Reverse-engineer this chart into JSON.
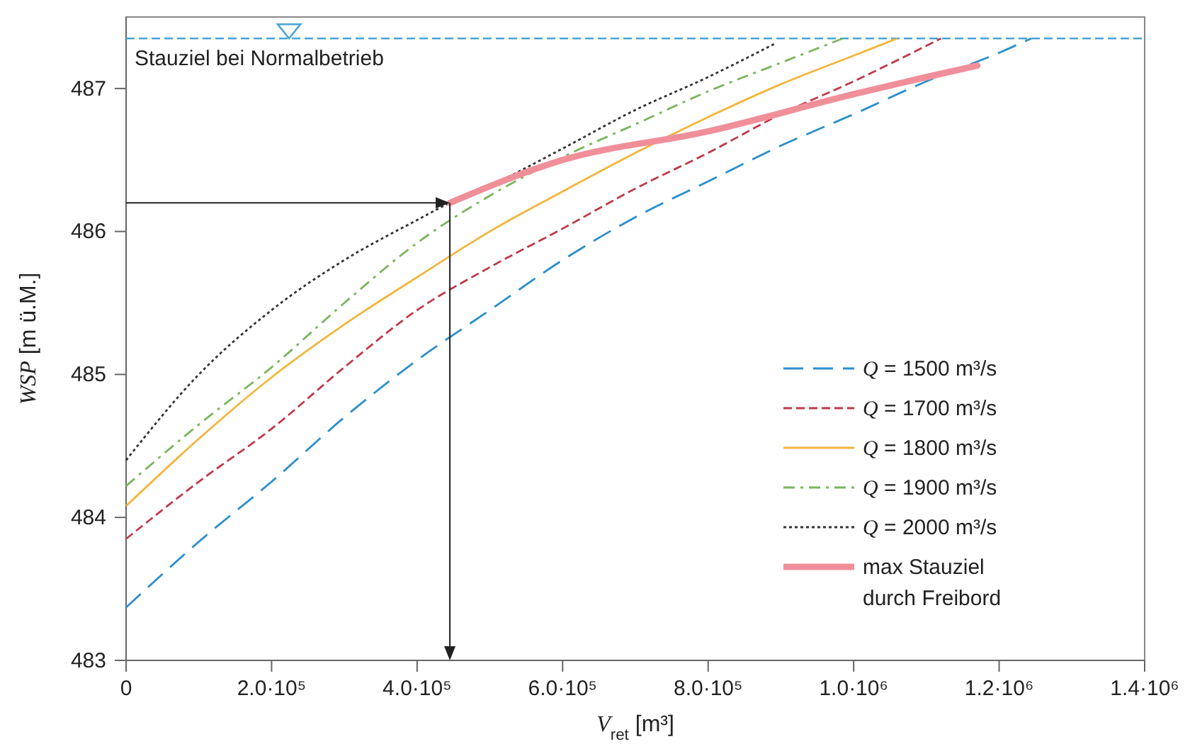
{
  "chart_data": {
    "type": "line",
    "xlabel": "V$_{ret}$ [m³]",
    "ylabel": "WSP [m ü.M.]",
    "xlim": [
      0,
      1400000
    ],
    "ylim": [
      483,
      487.5
    ],
    "xticks": [
      0,
      {
        "value": 200000,
        "label": "2.0·10⁵"
      },
      {
        "value": 400000,
        "label": "4.0·10⁵"
      },
      {
        "value": 600000,
        "label": "6.0·10⁵"
      },
      {
        "value": 800000,
        "label": "8.0·10⁵"
      },
      {
        "value": 1000000,
        "label": "1.0·10⁶"
      },
      {
        "value": 1200000,
        "label": "1.2·10⁶"
      },
      {
        "value": 1400000,
        "label": "1.4·10⁶"
      }
    ],
    "yticks": [
      483,
      484,
      485,
      486,
      487
    ],
    "grid": false,
    "legend": "bottom right",
    "marker": "none",
    "ref_lines": [
      {
        "axis": "y",
        "value": 487.35,
        "label": "Stauziel bei Normalbetrieb",
        "color": "#4aa3d9",
        "line_style": "dashed"
      }
    ],
    "series": [
      {
        "name": "Q = 1500 m³/s",
        "color": "#2a8fcc",
        "line_style": "longdash",
        "x": [
          0,
          100000,
          200000,
          300000,
          400000,
          500000,
          600000,
          700000,
          800000,
          900000,
          1000000,
          1100000,
          1200000,
          1244000
        ],
        "values": [
          483.37,
          483.83,
          484.25,
          484.7,
          485.1,
          485.45,
          485.8,
          486.1,
          486.35,
          486.6,
          486.82,
          487.05,
          487.25,
          487.35
        ]
      },
      {
        "name": "Q = 1700 m³/s",
        "color": "#c0394a",
        "line_style": "dashed",
        "x": [
          0,
          100000,
          200000,
          300000,
          400000,
          500000,
          600000,
          700000,
          800000,
          900000,
          1000000,
          1120000
        ],
        "values": [
          483.85,
          484.25,
          484.62,
          485.05,
          485.45,
          485.75,
          486.02,
          486.3,
          486.55,
          486.82,
          487.05,
          487.35
        ]
      },
      {
        "name": "Q = 1800 m³/s",
        "color": "#f3b63c",
        "line_style": "solid",
        "x": [
          0,
          100000,
          200000,
          300000,
          400000,
          500000,
          600000,
          700000,
          800000,
          900000,
          1000000,
          1060000
        ],
        "values": [
          484.08,
          484.55,
          484.98,
          485.35,
          485.68,
          486.0,
          486.28,
          486.55,
          486.8,
          487.03,
          487.23,
          487.35
        ]
      },
      {
        "name": "Q = 1900 m³/s",
        "color": "#7ab55c",
        "line_style": "dashdot",
        "x": [
          0,
          100000,
          200000,
          300000,
          400000,
          500000,
          600000,
          700000,
          800000,
          900000,
          985000
        ],
        "values": [
          484.22,
          484.65,
          485.05,
          485.5,
          485.92,
          486.25,
          486.52,
          486.75,
          486.98,
          487.18,
          487.35
        ]
      },
      {
        "name": "Q = 2000 m³/s",
        "color": "#333333",
        "line_style": "dotted",
        "x": [
          0,
          100000,
          200000,
          300000,
          400000,
          445000,
          500000,
          600000,
          700000,
          800000,
          894000
        ],
        "values": [
          484.4,
          485.0,
          485.45,
          485.8,
          486.08,
          486.2,
          486.32,
          486.58,
          486.85,
          487.08,
          487.32
        ]
      },
      {
        "name": "max Stauziel durch Freibord",
        "color": "#f08f9a",
        "line_style": "solid",
        "x": [
          445000,
          600000,
          800000,
          1000000,
          1100000,
          1170000
        ],
        "values": [
          486.2,
          486.5,
          486.7,
          486.96,
          487.08,
          487.16
        ]
      }
    ]
  }
}
